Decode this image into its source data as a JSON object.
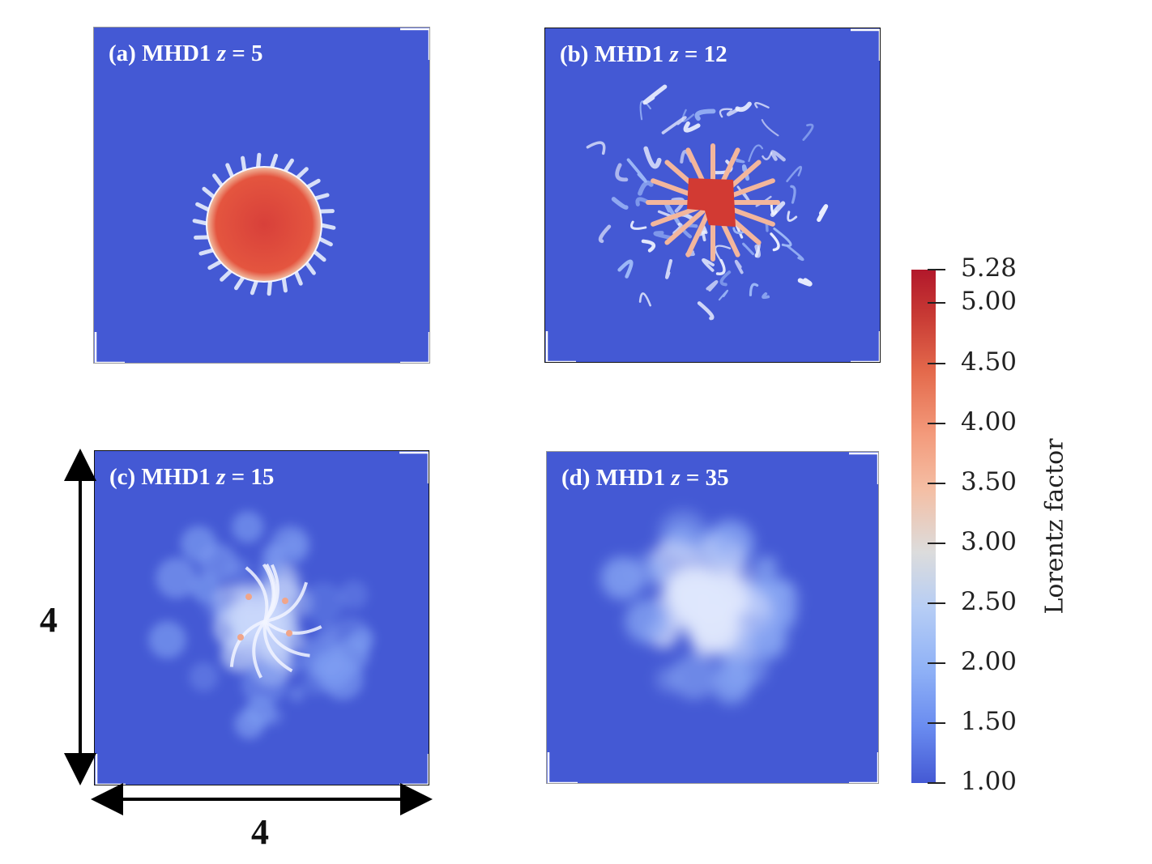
{
  "panels": [
    {
      "id": "a",
      "label_prefix": "(a) MHD1 ",
      "label_var": "z",
      "label_suffix": " = 5"
    },
    {
      "id": "b",
      "label_prefix": "(b) MHD1 ",
      "label_var": "z",
      "label_suffix": " = 12"
    },
    {
      "id": "c",
      "label_prefix": "(c) MHD1 ",
      "label_var": "z",
      "label_suffix": " = 15"
    },
    {
      "id": "d",
      "label_prefix": "(d) MHD1 ",
      "label_var": "z",
      "label_suffix": " = 35"
    }
  ],
  "colorbar": {
    "title": "Lorentz factor",
    "min": 1.0,
    "max": 5.28,
    "ticks": [
      "5.28",
      "5.00",
      "4.50",
      "4.00",
      "3.50",
      "3.00",
      "2.50",
      "2.00",
      "1.50",
      "1.00"
    ],
    "tick_values": [
      5.28,
      5.0,
      4.5,
      4.0,
      3.5,
      3.0,
      2.5,
      2.0,
      1.5,
      1.0
    ],
    "colormap": "coolwarm",
    "low_color": "#4459d4",
    "high_color": "#b2182b"
  },
  "dimensions": {
    "vertical_label": "4",
    "horizontal_label": "4"
  },
  "chart_data": {
    "type": "heatmap",
    "title": "",
    "quantity": "Lorentz factor",
    "range": [
      1.0,
      5.28
    ],
    "domain_size": [
      4,
      4
    ],
    "panels": [
      {
        "label": "(a) MHD1 z = 5",
        "z": 5,
        "peak_value": 4.7,
        "description_level": "central hot disk"
      },
      {
        "label": "(b) MHD1 z = 12",
        "z": 12,
        "peak_value": 5.2,
        "description_level": "fragmenting core"
      },
      {
        "label": "(c) MHD1 z = 15",
        "z": 15,
        "peak_value": 3.8,
        "description_level": "turbulent"
      },
      {
        "label": "(d) MHD1 z = 35",
        "z": 35,
        "peak_value": 2.9,
        "description_level": "diffuse"
      }
    ]
  }
}
